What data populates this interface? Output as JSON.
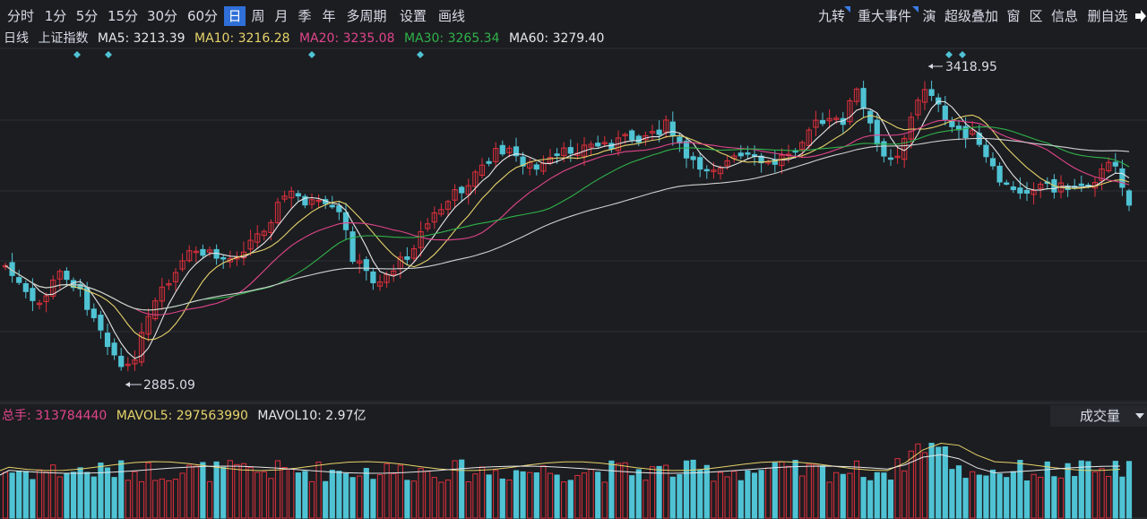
{
  "toolbar": {
    "periods": [
      "分时",
      "1分",
      "5分",
      "15分",
      "30分",
      "60分",
      "日",
      "周",
      "月",
      "季",
      "年",
      "多周期",
      "设置",
      "画线"
    ],
    "active_period": "日",
    "right_items": [
      "九转",
      "重大事件",
      "演",
      "超级叠加",
      "窗",
      "区",
      "信息",
      "删自选"
    ],
    "accent_color": "#2f6fd8"
  },
  "legend": {
    "period": "日线",
    "index_name": "上证指数",
    "ma5": "MA5: 3213.39",
    "ma10": "MA10: 3216.28",
    "ma20": "MA20: 3235.08",
    "ma30": "MA30: 3265.34",
    "ma60": "MA60: 3279.40",
    "colors": {
      "ma5": "#e6e6e6",
      "ma10": "#e6d36a",
      "ma20": "#e0458a",
      "ma30": "#2fb24a",
      "ma60": "#e6e6e6"
    }
  },
  "annotations": {
    "high_label": "3418.95",
    "low_label": "2885.09"
  },
  "volume": {
    "total": "总手: 313784440",
    "mavol5": "MAVOL5: 297563990",
    "mavol10": "MAVOL10: 2.97亿",
    "selector_label": "成交量",
    "colors": {
      "total": "#e0458a",
      "mavol5": "#e6d36a",
      "mavol10": "#e6e6e6"
    }
  },
  "chart_data": {
    "type": "candlestick",
    "title": "上证指数 日线",
    "y_high_marked": 3418.95,
    "y_low_marked": 2885.09,
    "ma_values": {
      "MA5": 3213.39,
      "MA10": 3216.28,
      "MA20": 3235.08,
      "MA30": 3265.34,
      "MA60": 3279.4
    },
    "volume_values": {
      "total": 313784440,
      "MAVOL5": 297563990,
      "MAVOL10": "2.97亿"
    },
    "up_color": "#e0303c",
    "down_color": "#4fc3d4"
  }
}
